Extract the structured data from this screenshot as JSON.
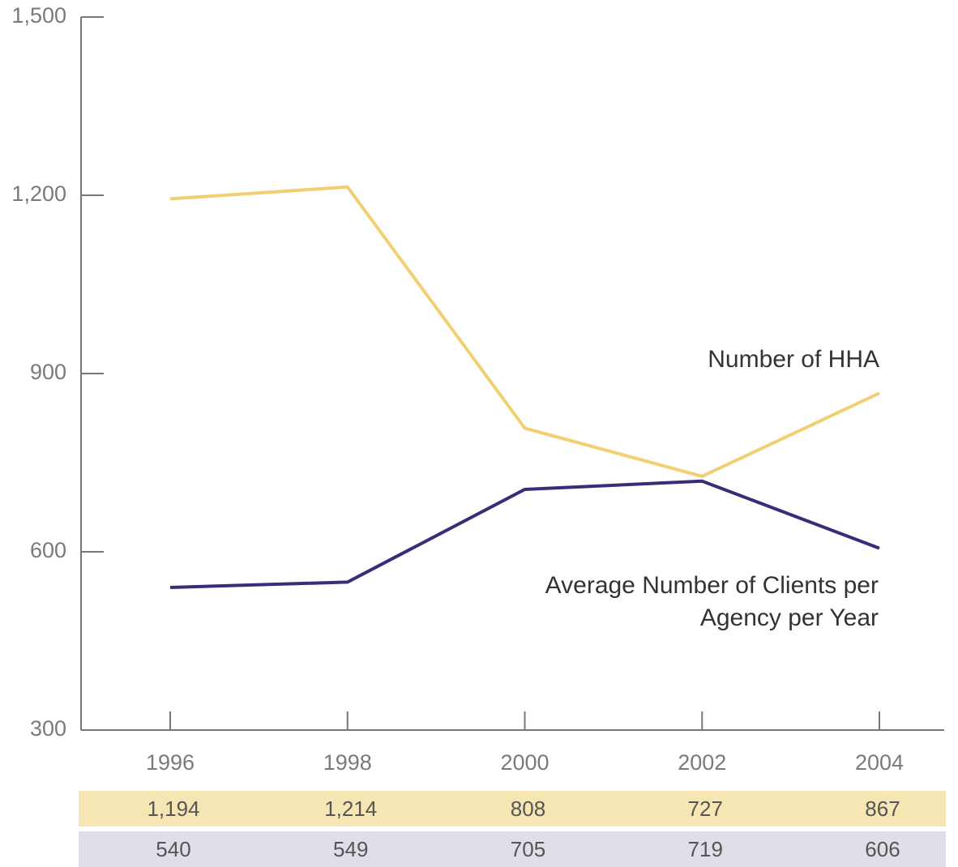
{
  "chart_data": {
    "type": "line",
    "categories": [
      "1996",
      "1998",
      "2000",
      "2002",
      "2004"
    ],
    "series": [
      {
        "name": "Number of HHA",
        "color": "#f2cf73",
        "row_color": "#f6e6b4",
        "values": [
          1194,
          1214,
          808,
          727,
          867
        ],
        "value_labels": [
          "1,194",
          "1,214",
          "808",
          "727",
          "867"
        ]
      },
      {
        "name": "Average Number of Clients per Agency per Year",
        "color": "#3d2a78",
        "row_color": "#e1deea",
        "values": [
          540,
          549,
          705,
          719,
          606
        ]
      }
    ],
    "ylim": [
      300,
      1500
    ],
    "yticks": [
      300,
      600,
      900,
      {
        "value": 1200,
        "label": "1,200"
      },
      {
        "value": 1500,
        "label": "1,500"
      }
    ]
  }
}
